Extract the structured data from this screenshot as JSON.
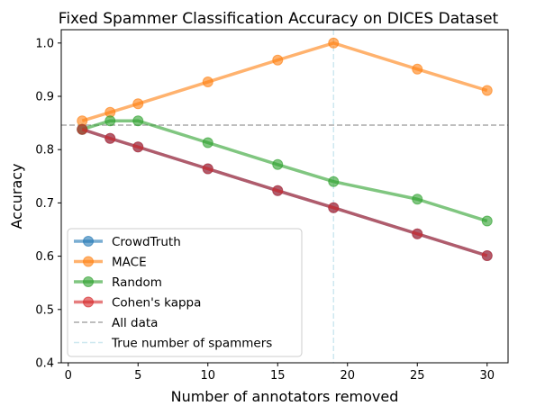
{
  "chart_data": {
    "type": "line",
    "title": "Fixed Spammer Classification Accuracy on DICES Dataset",
    "xlabel": "Number of annotators removed",
    "ylabel": "Accuracy",
    "xlim": [
      -0.5,
      31.5
    ],
    "ylim": [
      0.4,
      1.025
    ],
    "xticks": [
      0,
      5,
      10,
      15,
      20,
      25,
      30
    ],
    "yticks": [
      0.4,
      0.5,
      0.6,
      0.7,
      0.8,
      0.9,
      1.0
    ],
    "xtick_labels": [
      "0",
      "5",
      "10",
      "15",
      "20",
      "25",
      "30"
    ],
    "ytick_labels": [
      "0.4",
      "0.5",
      "0.6",
      "0.7",
      "0.8",
      "0.9",
      "1.0"
    ],
    "x": [
      1,
      3,
      5,
      10,
      15,
      19,
      25,
      30
    ],
    "series": [
      {
        "name": "CrowdTruth",
        "color": "#1f77b4",
        "values": [
          0.838,
          0.821,
          0.805,
          0.764,
          0.723,
          0.691,
          0.642,
          0.601
        ]
      },
      {
        "name": "MACE",
        "color": "#ff7f0e",
        "values": [
          0.854,
          0.87,
          0.886,
          0.927,
          0.968,
          1.0,
          0.951,
          0.911
        ]
      },
      {
        "name": "Random",
        "color": "#2ca02c",
        "values": [
          0.838,
          0.854,
          0.854,
          0.813,
          0.772,
          0.74,
          0.707,
          0.666
        ]
      },
      {
        "name": "Cohen's kappa",
        "color": "#d62728",
        "values": [
          0.838,
          0.821,
          0.805,
          0.764,
          0.723,
          0.691,
          0.642,
          0.601
        ]
      }
    ],
    "reference_lines": [
      {
        "name": "All data",
        "orientation": "horizontal",
        "value": 0.846,
        "color": "#a9a9a9",
        "style": "dashed"
      },
      {
        "name": "True number of spammers",
        "orientation": "vertical",
        "value": 19,
        "color": "#add8e6",
        "style": "dashed"
      }
    ],
    "legend_position": "lower-left",
    "grid": false
  }
}
